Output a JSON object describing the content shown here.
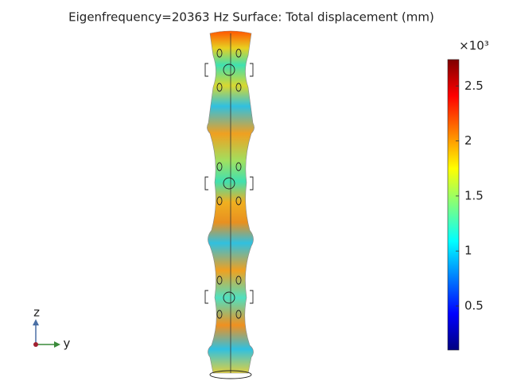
{
  "chart_data": {
    "type": "surface",
    "title": "Eigenfrequency=20363 Hz   Surface: Total displacement (mm)",
    "colorbar_multiplier": "×10³",
    "colorbar_lim": [
      0.1,
      2.74
    ],
    "colorbar_ticks": [
      0.5,
      1,
      1.5,
      2,
      2.5
    ],
    "colormap": [
      "#00007f",
      "#0000ff",
      "#007fff",
      "#00ffff",
      "#7fff7f",
      "#ffff00",
      "#ff7f00",
      "#ff0000",
      "#7f0000"
    ],
    "axis_labels": {
      "vertical": "z",
      "horizontal": "y"
    }
  }
}
